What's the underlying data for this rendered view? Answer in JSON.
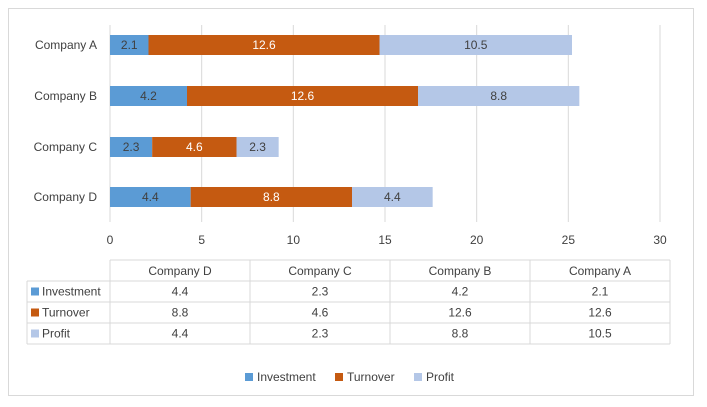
{
  "chart_data": {
    "type": "bar",
    "orientation": "horizontal",
    "stacked": true,
    "categories": [
      "Company A",
      "Company B",
      "Company C",
      "Company D"
    ],
    "series": [
      {
        "name": "Investment",
        "values": [
          2.1,
          4.2,
          2.3,
          4.4
        ],
        "color": "#5b9bd5"
      },
      {
        "name": "Turnover",
        "values": [
          12.6,
          12.6,
          4.6,
          8.8
        ],
        "color": "#c55a11"
      },
      {
        "name": "Profit",
        "values": [
          10.5,
          8.8,
          2.3,
          4.4
        ],
        "color": "#b4c7e7"
      }
    ],
    "xlim": [
      0,
      30
    ],
    "xticks": [
      0,
      5,
      10,
      15,
      20,
      25,
      30
    ],
    "grid": true,
    "legend": "bottom",
    "data_table": {
      "columns": [
        "Company D",
        "Company C",
        "Company B",
        "Company A"
      ],
      "rows": [
        {
          "name": "Investment",
          "values": [
            "4.4",
            "2.3",
            "4.2",
            "2.1"
          ]
        },
        {
          "name": "Turnover",
          "values": [
            "8.8",
            "4.6",
            "12.6",
            "12.6"
          ]
        },
        {
          "name": "Profit",
          "values": [
            "4.4",
            "2.3",
            "8.8",
            "10.5"
          ]
        }
      ]
    }
  }
}
